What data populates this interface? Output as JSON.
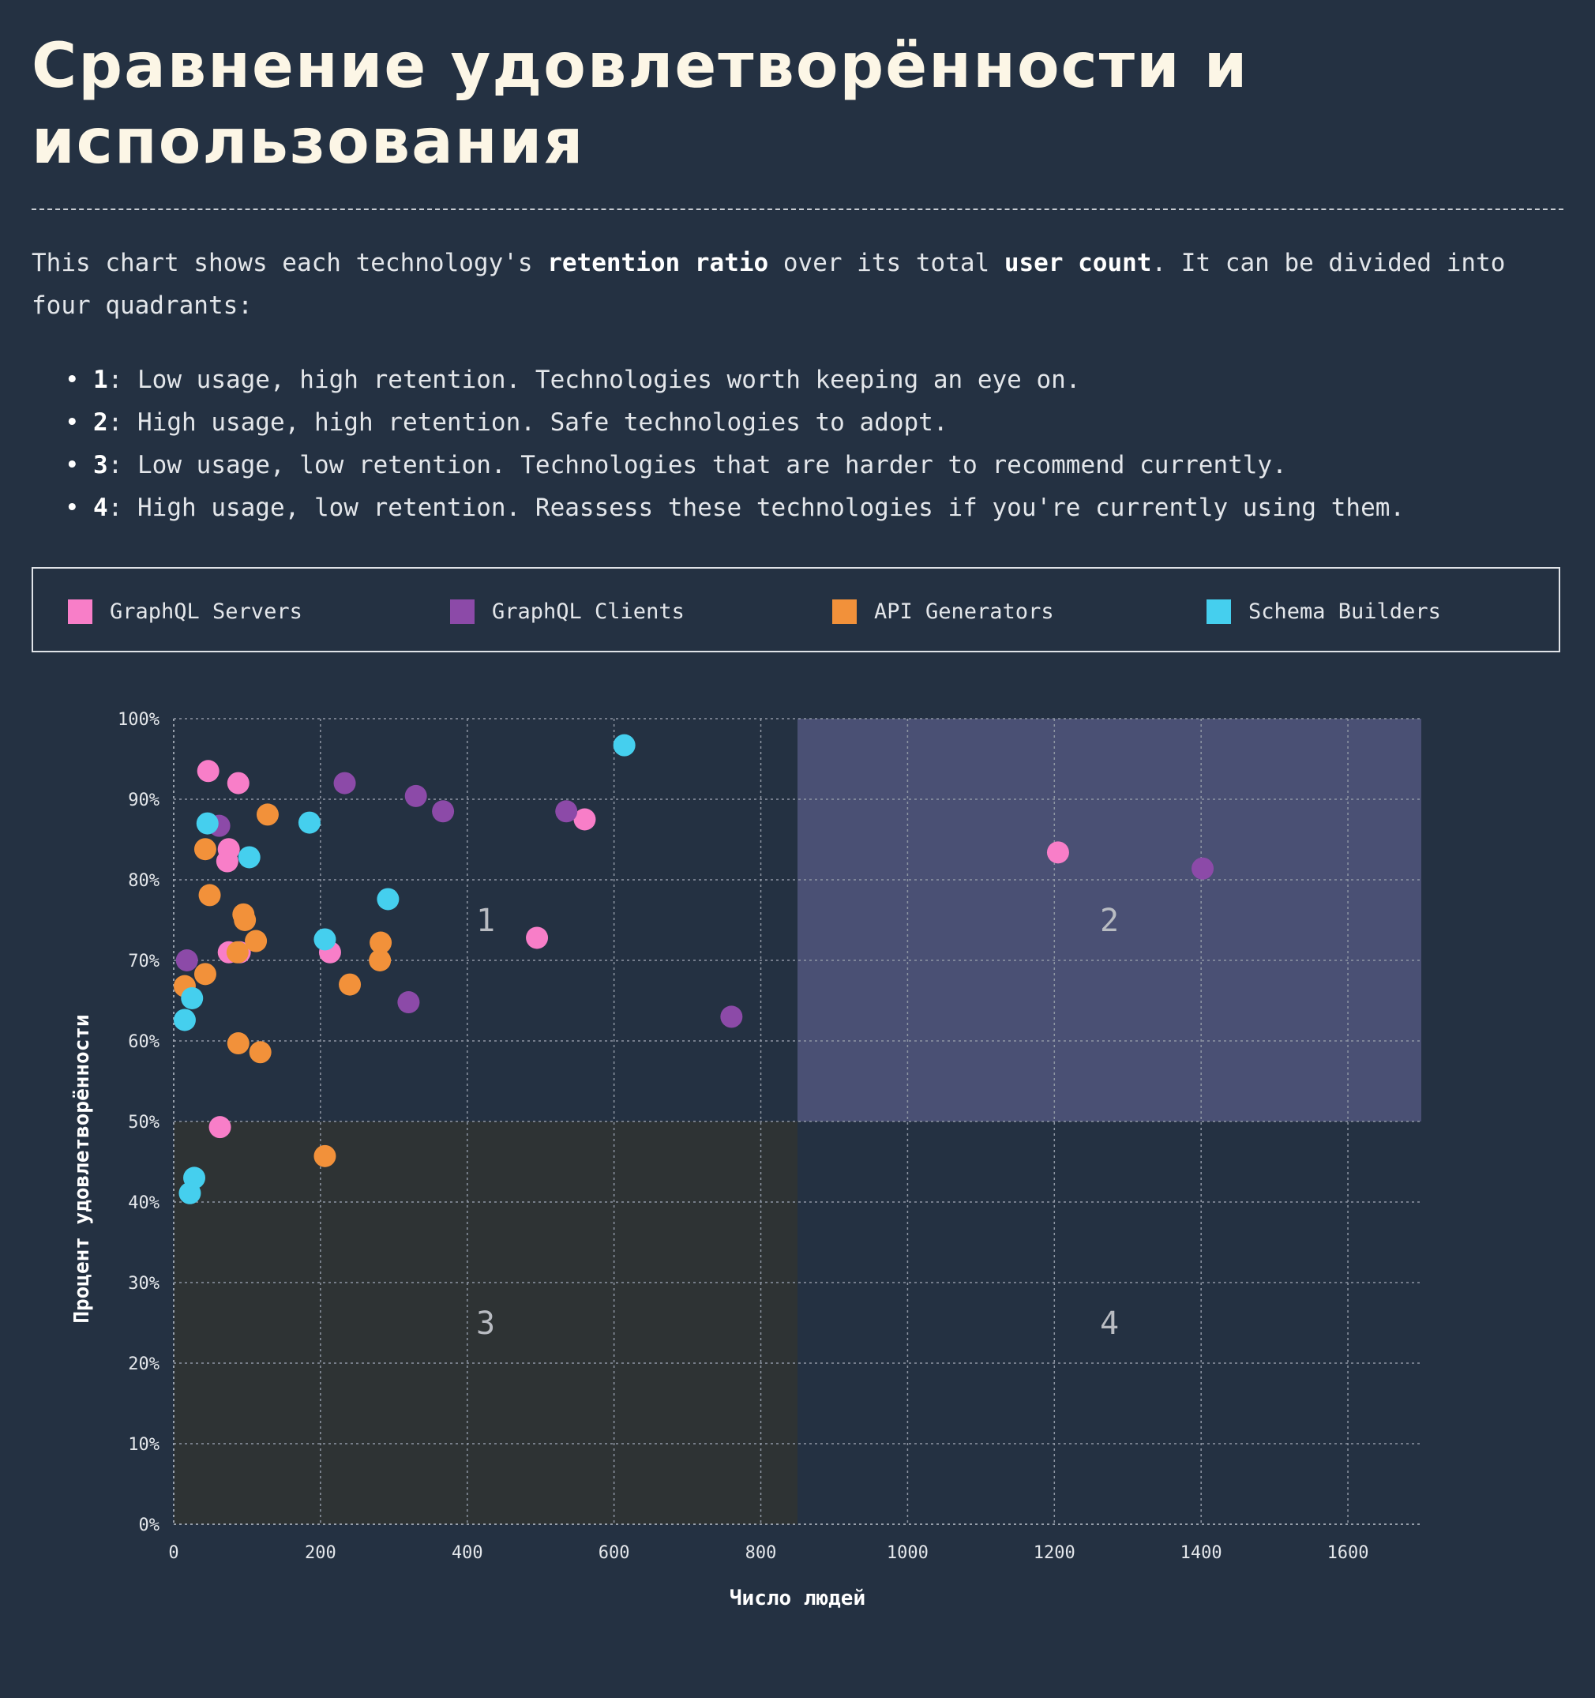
{
  "title": "Сравнение удовлетворённости и использования",
  "intro": {
    "p1": "This chart shows each technology's ",
    "b1": "retention ratio",
    "p2": " over its total ",
    "b2": "user count",
    "p3": ". It can be divided into four quadrants:"
  },
  "quadrant_notes": [
    {
      "num": "1",
      "text": ": Low usage, high retention. Technologies worth keeping an eye on."
    },
    {
      "num": "2",
      "text": ": High usage, high retention. Safe technologies to adopt."
    },
    {
      "num": "3",
      "text": ": Low usage, low retention. Technologies that are harder to recommend currently."
    },
    {
      "num": "4",
      "text": ": High usage, low retention. Reassess these technologies if you're currently using them."
    }
  ],
  "legend": [
    {
      "label": "GraphQL Servers",
      "color": "#f87ec8"
    },
    {
      "label": "GraphQL Clients",
      "color": "#8c4aa8"
    },
    {
      "label": "API Generators",
      "color": "#f2913a"
    },
    {
      "label": "Schema Builders",
      "color": "#45cfee"
    }
  ],
  "chart_data": {
    "type": "scatter",
    "xlabel": "Число людей",
    "ylabel": "Процент удовлетворённости",
    "xlim": [
      0,
      1700
    ],
    "ylim": [
      0,
      100
    ],
    "xticks": [
      0,
      200,
      400,
      600,
      800,
      1000,
      1200,
      1400,
      1600
    ],
    "yticks": [
      0,
      10,
      20,
      30,
      40,
      50,
      60,
      70,
      80,
      90,
      100
    ],
    "y_tick_suffix": "%",
    "grid": true,
    "legend_position": "top",
    "quadrants": {
      "x_split": 850,
      "y_split": 50,
      "labels": [
        "1",
        "2",
        "3",
        "4"
      ],
      "q2_color": "#4a5074",
      "q3_color": "#2e3334"
    },
    "series": [
      {
        "name": "GraphQL Servers",
        "color": "#f87ec8",
        "points": [
          [
            47,
            93.5
          ],
          [
            88,
            92
          ],
          [
            75,
            83.8
          ],
          [
            73,
            82.3
          ],
          [
            75,
            71
          ],
          [
            90,
            71
          ],
          [
            213,
            71
          ],
          [
            560,
            87.5
          ],
          [
            495,
            72.8
          ],
          [
            63,
            49.3
          ],
          [
            1205,
            83.4
          ]
        ]
      },
      {
        "name": "GraphQL Clients",
        "color": "#8c4aa8",
        "points": [
          [
            62,
            86.7
          ],
          [
            233,
            92
          ],
          [
            330,
            90.4
          ],
          [
            367,
            88.5
          ],
          [
            535,
            88.5
          ],
          [
            18,
            70
          ],
          [
            320,
            64.8
          ],
          [
            760,
            63
          ],
          [
            1402,
            81.4
          ]
        ]
      },
      {
        "name": "API Generators",
        "color": "#f2913a",
        "points": [
          [
            128,
            88.1
          ],
          [
            43,
            83.8
          ],
          [
            49,
            78.1
          ],
          [
            95,
            75.7
          ],
          [
            97,
            75
          ],
          [
            112,
            72.4
          ],
          [
            87,
            71
          ],
          [
            43,
            68.3
          ],
          [
            15,
            66.8
          ],
          [
            88,
            59.7
          ],
          [
            118,
            58.6
          ],
          [
            240,
            67
          ],
          [
            282,
            72.2
          ],
          [
            281,
            70
          ],
          [
            206,
            45.7
          ]
        ]
      },
      {
        "name": "Schema Builders",
        "color": "#45cfee",
        "points": [
          [
            46,
            87
          ],
          [
            185,
            87.1
          ],
          [
            103,
            82.8
          ],
          [
            614,
            96.7
          ],
          [
            292,
            77.6
          ],
          [
            206,
            72.6
          ],
          [
            25,
            65.3
          ],
          [
            15,
            62.6
          ],
          [
            28,
            43
          ],
          [
            22,
            41.1
          ]
        ]
      }
    ]
  }
}
